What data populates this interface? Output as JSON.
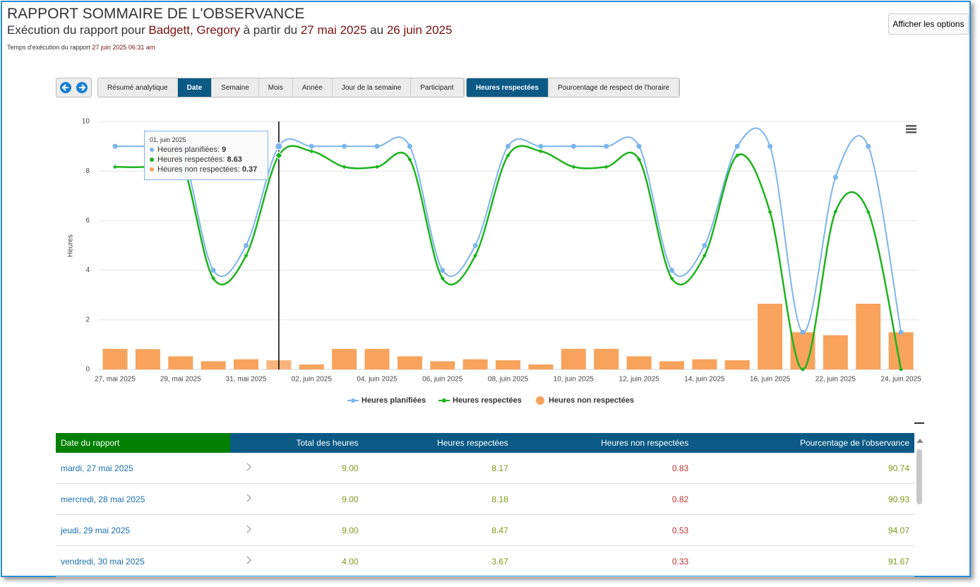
{
  "header": {
    "title": "RAPPORT SOMMAIRE DE L'OBSERVANCE",
    "subtitle": {
      "prefix": "Exécution du rapport pour",
      "name": "Badgett, Gregory",
      "from_text": "à partir du",
      "from": "27 mai 2025",
      "to_text": "au",
      "to": "26 juin 2025"
    },
    "run_time_label": "Temps d'exécution du rapport",
    "run_time": "27 juin 2025 06:31 am",
    "options_button": "Afficher les options"
  },
  "tabs": {
    "group_by": [
      "Résumé analytique",
      "Date",
      "Semaine",
      "Mois",
      "Année",
      "Jour de la semaine",
      "Participant"
    ],
    "active_group": "Date",
    "measures": [
      "Heures respectées",
      "Pourcentage de respect de l'horaire"
    ],
    "active_measure": "Heures respectées"
  },
  "chart_data": {
    "type": "line",
    "y_label": "Heures",
    "categories": [
      "27, mai 2025",
      null,
      "29, mai 2025",
      null,
      "31, mai 2025",
      null,
      "02, juin 2025",
      null,
      "04, juin 2025",
      null,
      "06, juin 2025",
      null,
      "08, juin 2025",
      null,
      "10, juin 2025",
      null,
      "12, juin 2025",
      null,
      "14, juin 2025",
      null,
      "16, juin 2025",
      null,
      "22, juin 2025",
      null,
      "24, juin 2025"
    ],
    "series": [
      {
        "name": "Heures planifiées",
        "color": "#7cb5ec",
        "kind": "line",
        "values": [
          9,
          9,
          9,
          4,
          5,
          9,
          9,
          9,
          9,
          9,
          4,
          5,
          9,
          9,
          9,
          9,
          9,
          4,
          5,
          9,
          9,
          1.5,
          7.75,
          9,
          1.5
        ]
      },
      {
        "name": "Heures respectées",
        "color": "#1db31d",
        "kind": "line",
        "values": [
          8.17,
          8.18,
          8.47,
          3.67,
          4.59,
          8.63,
          8.8,
          8.17,
          8.17,
          8.47,
          3.67,
          4.59,
          8.63,
          8.8,
          8.17,
          8.17,
          8.47,
          3.67,
          4.59,
          8.63,
          6.35,
          0,
          6.37,
          6.35,
          0
        ]
      },
      {
        "name": "Heures non respectées",
        "color": "#f7a35c",
        "kind": "bar",
        "values": [
          0.83,
          0.82,
          0.53,
          0.33,
          0.41,
          0.37,
          0.2,
          0.83,
          0.83,
          0.53,
          0.33,
          0.41,
          0.37,
          0.2,
          0.83,
          0.83,
          0.53,
          0.33,
          0.41,
          0.37,
          2.65,
          1.5,
          1.38,
          2.65,
          1.5
        ]
      }
    ],
    "ylim": [
      0,
      10
    ],
    "yticks": [
      0,
      2,
      4,
      6,
      8,
      10
    ],
    "grid": true,
    "tooltip": {
      "title": "01, juin 2025",
      "index": 5
    }
  },
  "table": {
    "columns": [
      "Date du rapport",
      "Total des heures",
      "Heures respectées",
      "Heures non respectées",
      "Pourcentage de l'observance"
    ],
    "rows": [
      [
        "mardi, 27 mai 2025",
        "9.00",
        "8.17",
        "0.83",
        "90.74"
      ],
      [
        "mercredi, 28 mai 2025",
        "9.00",
        "8.18",
        "0.82",
        "90.93"
      ],
      [
        "jeudi, 29 mai 2025",
        "9.00",
        "8.47",
        "0.53",
        "94.07"
      ],
      [
        "vendredi, 30 mai 2025",
        "4.00",
        "3.67",
        "0.33",
        "91.67"
      ]
    ]
  }
}
